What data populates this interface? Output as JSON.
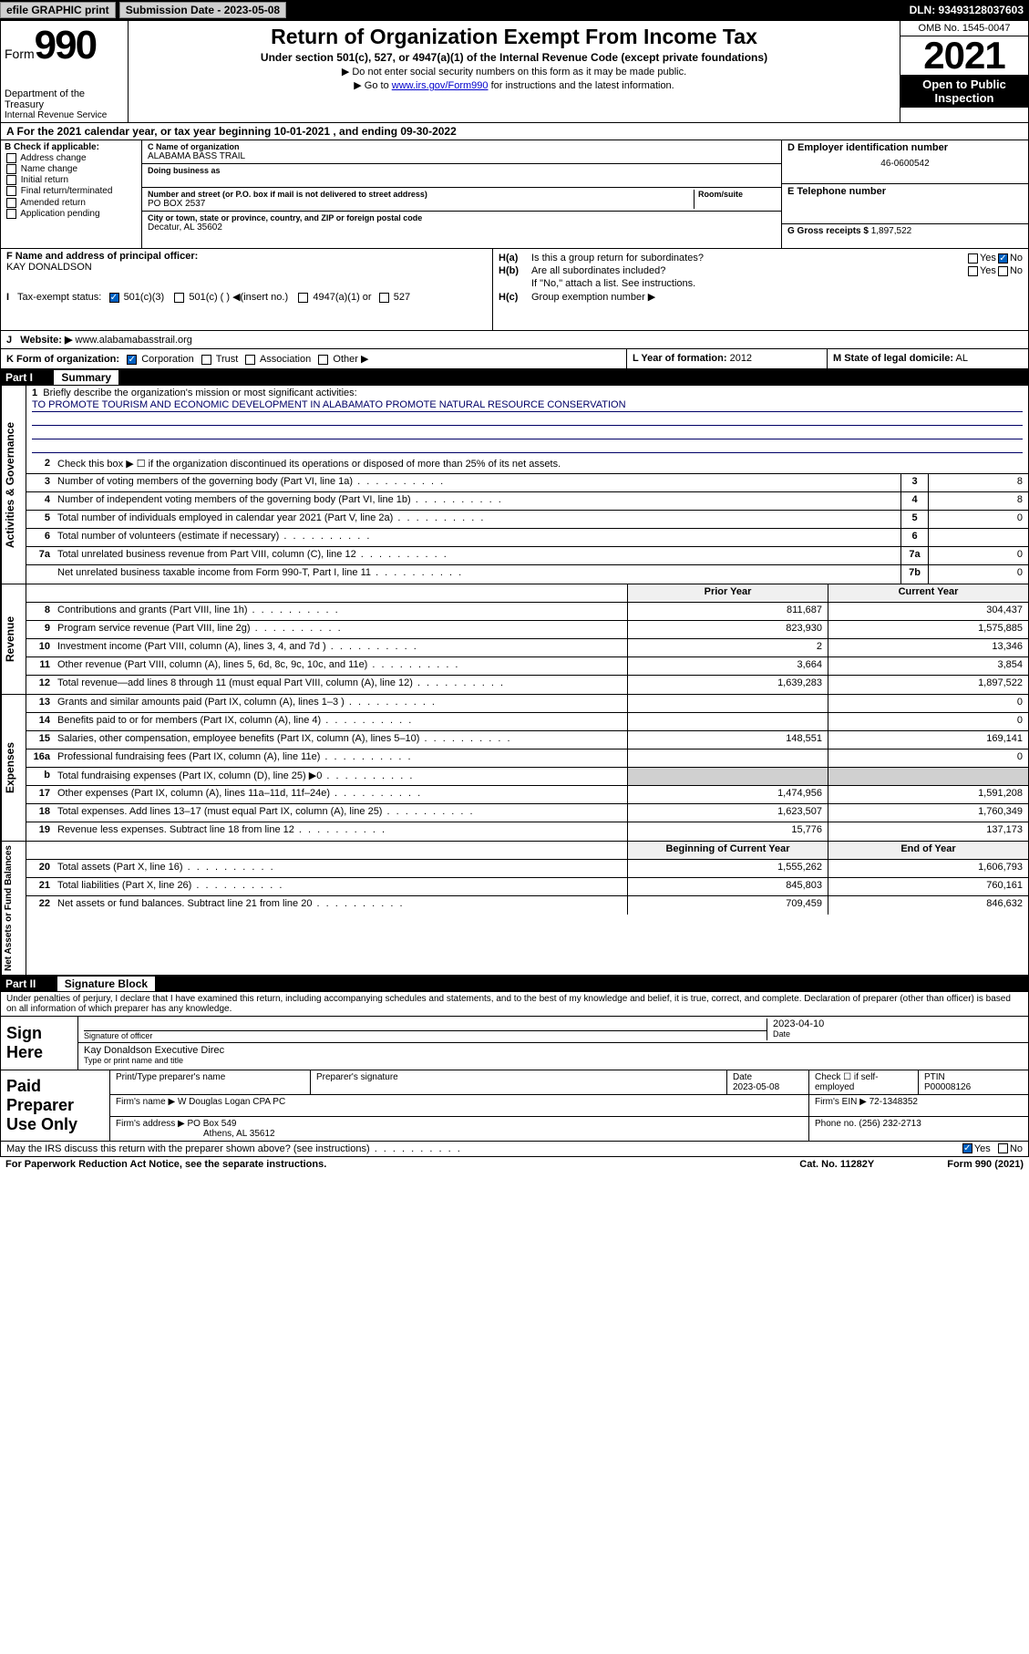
{
  "topbar": {
    "efile": "efile GRAPHIC print",
    "sub_label": "Submission Date - ",
    "sub_date": "2023-05-08",
    "dln": "DLN: 93493128037603"
  },
  "header": {
    "form_prefix": "Form",
    "form_num": "990",
    "dept": "Department of the Treasury",
    "irs": "Internal Revenue Service",
    "title": "Return of Organization Exempt From Income Tax",
    "sub": "Under section 501(c), 527, or 4947(a)(1) of the Internal Revenue Code (except private foundations)",
    "line1": "▶ Do not enter social security numbers on this form as it may be made public.",
    "line2_pre": "▶ Go to ",
    "line2_link": "www.irs.gov/Form990",
    "line2_post": " for instructions and the latest information.",
    "omb": "OMB No. 1545-0047",
    "year": "2021",
    "inspection": "Open to Public Inspection"
  },
  "row_a": "A For the 2021 calendar year, or tax year beginning 10-01-2021   , and ending 09-30-2022",
  "box_b": {
    "title": "B Check if applicable:",
    "opts": [
      "Address change",
      "Name change",
      "Initial return",
      "Final return/terminated",
      "Amended return",
      "Application pending"
    ]
  },
  "box_c": {
    "name_lbl": "C Name of organization",
    "name": "ALABAMA BASS TRAIL",
    "dba_lbl": "Doing business as",
    "addr_lbl": "Number and street (or P.O. box if mail is not delivered to street address)",
    "room_lbl": "Room/suite",
    "addr": "PO BOX 2537",
    "city_lbl": "City or town, state or province, country, and ZIP or foreign postal code",
    "city": "Decatur, AL  35602"
  },
  "box_d": {
    "lbl": "D Employer identification number",
    "val": "46-0600542"
  },
  "box_e": {
    "lbl": "E Telephone number",
    "val": ""
  },
  "box_g": {
    "lbl": "G Gross receipts $",
    "val": "1,897,522"
  },
  "box_f": {
    "lbl": "F Name and address of principal officer:",
    "name": "KAY DONALDSON"
  },
  "box_h": {
    "a": "Is this a group return for subordinates?",
    "b": "Are all subordinates included?",
    "b_note": "If \"No,\" attach a list. See instructions.",
    "c": "Group exemption number ▶",
    "yes": "Yes",
    "no": "No"
  },
  "box_i": {
    "lbl": "Tax-exempt status:",
    "opts": [
      "501(c)(3)",
      "501(c) (   ) ◀(insert no.)",
      "4947(a)(1) or",
      "527"
    ]
  },
  "box_j": {
    "lbl": "Website: ▶",
    "val": "www.alabamabasstrail.org"
  },
  "box_k": {
    "lbl": "K Form of organization:",
    "opts": [
      "Corporation",
      "Trust",
      "Association",
      "Other ▶"
    ]
  },
  "box_l": {
    "lbl": "L Year of formation:",
    "val": "2012"
  },
  "box_m": {
    "lbl": "M State of legal domicile:",
    "val": "AL"
  },
  "part1": {
    "num": "Part I",
    "title": "Summary"
  },
  "summary": {
    "side1": "Activities & Governance",
    "q1": "Briefly describe the organization's mission or most significant activities:",
    "mission": "TO PROMOTE TOURISM AND ECONOMIC DEVELOPMENT IN ALABAMATO PROMOTE NATURAL RESOURCE CONSERVATION",
    "q2": "Check this box ▶ ☐ if the organization discontinued its operations or disposed of more than 25% of its net assets.",
    "rows_gov": [
      {
        "n": "3",
        "d": "Number of voting members of the governing body (Part VI, line 1a)",
        "b": "3",
        "v": "8"
      },
      {
        "n": "4",
        "d": "Number of independent voting members of the governing body (Part VI, line 1b)",
        "b": "4",
        "v": "8"
      },
      {
        "n": "5",
        "d": "Total number of individuals employed in calendar year 2021 (Part V, line 2a)",
        "b": "5",
        "v": "0"
      },
      {
        "n": "6",
        "d": "Total number of volunteers (estimate if necessary)",
        "b": "6",
        "v": ""
      },
      {
        "n": "7a",
        "d": "Total unrelated business revenue from Part VIII, column (C), line 12",
        "b": "7a",
        "v": "0"
      },
      {
        "n": "",
        "d": "Net unrelated business taxable income from Form 990-T, Part I, line 11",
        "b": "7b",
        "v": "0"
      }
    ],
    "hdr_prior": "Prior Year",
    "hdr_curr": "Current Year",
    "side2": "Revenue",
    "rows_rev": [
      {
        "n": "8",
        "d": "Contributions and grants (Part VIII, line 1h)",
        "p": "811,687",
        "c": "304,437"
      },
      {
        "n": "9",
        "d": "Program service revenue (Part VIII, line 2g)",
        "p": "823,930",
        "c": "1,575,885"
      },
      {
        "n": "10",
        "d": "Investment income (Part VIII, column (A), lines 3, 4, and 7d )",
        "p": "2",
        "c": "13,346"
      },
      {
        "n": "11",
        "d": "Other revenue (Part VIII, column (A), lines 5, 6d, 8c, 9c, 10c, and 11e)",
        "p": "3,664",
        "c": "3,854"
      },
      {
        "n": "12",
        "d": "Total revenue—add lines 8 through 11 (must equal Part VIII, column (A), line 12)",
        "p": "1,639,283",
        "c": "1,897,522"
      }
    ],
    "side3": "Expenses",
    "rows_exp": [
      {
        "n": "13",
        "d": "Grants and similar amounts paid (Part IX, column (A), lines 1–3 )",
        "p": "",
        "c": "0"
      },
      {
        "n": "14",
        "d": "Benefits paid to or for members (Part IX, column (A), line 4)",
        "p": "",
        "c": "0"
      },
      {
        "n": "15",
        "d": "Salaries, other compensation, employee benefits (Part IX, column (A), lines 5–10)",
        "p": "148,551",
        "c": "169,141"
      },
      {
        "n": "16a",
        "d": "Professional fundraising fees (Part IX, column (A), line 11e)",
        "p": "",
        "c": "0"
      },
      {
        "n": "b",
        "d": "Total fundraising expenses (Part IX, column (D), line 25) ▶0",
        "p": "",
        "c": "",
        "shaded": true
      },
      {
        "n": "17",
        "d": "Other expenses (Part IX, column (A), lines 11a–11d, 11f–24e)",
        "p": "1,474,956",
        "c": "1,591,208"
      },
      {
        "n": "18",
        "d": "Total expenses. Add lines 13–17 (must equal Part IX, column (A), line 25)",
        "p": "1,623,507",
        "c": "1,760,349"
      },
      {
        "n": "19",
        "d": "Revenue less expenses. Subtract line 18 from line 12",
        "p": "15,776",
        "c": "137,173"
      }
    ],
    "side4": "Net Assets or Fund Balances",
    "hdr_beg": "Beginning of Current Year",
    "hdr_end": "End of Year",
    "rows_net": [
      {
        "n": "20",
        "d": "Total assets (Part X, line 16)",
        "p": "1,555,262",
        "c": "1,606,793"
      },
      {
        "n": "21",
        "d": "Total liabilities (Part X, line 26)",
        "p": "845,803",
        "c": "760,161"
      },
      {
        "n": "22",
        "d": "Net assets or fund balances. Subtract line 21 from line 20",
        "p": "709,459",
        "c": "846,632"
      }
    ]
  },
  "part2": {
    "num": "Part II",
    "title": "Signature Block"
  },
  "sig": {
    "perjury": "Under penalties of perjury, I declare that I have examined this return, including accompanying schedules and statements, and to the best of my knowledge and belief, it is true, correct, and complete. Declaration of preparer (other than officer) is based on all information of which preparer has any knowledge.",
    "sign_here": "Sign Here",
    "sig_officer": "Signature of officer",
    "date_lbl": "Date",
    "date": "2023-04-10",
    "name_title": "Kay Donaldson  Executive Direc",
    "type_lbl": "Type or print name and title"
  },
  "paid": {
    "title": "Paid Preparer Use Only",
    "h1": "Print/Type preparer's name",
    "h2": "Preparer's signature",
    "h3": "Date",
    "h3v": "2023-05-08",
    "h4": "Check ☐ if self-employed",
    "h5": "PTIN",
    "h5v": "P00008126",
    "firm_name_lbl": "Firm's name    ▶",
    "firm_name": "W Douglas Logan CPA PC",
    "firm_ein_lbl": "Firm's EIN ▶",
    "firm_ein": "72-1348352",
    "firm_addr_lbl": "Firm's address ▶",
    "firm_addr": "PO Box 549",
    "firm_city": "Athens, AL  35612",
    "phone_lbl": "Phone no.",
    "phone": "(256) 232-2713"
  },
  "footer": {
    "discuss": "May the IRS discuss this return with the preparer shown above? (see instructions)",
    "yes": "Yes",
    "no": "No",
    "pra": "For Paperwork Reduction Act Notice, see the separate instructions.",
    "cat": "Cat. No. 11282Y",
    "form": "Form 990 (2021)"
  }
}
